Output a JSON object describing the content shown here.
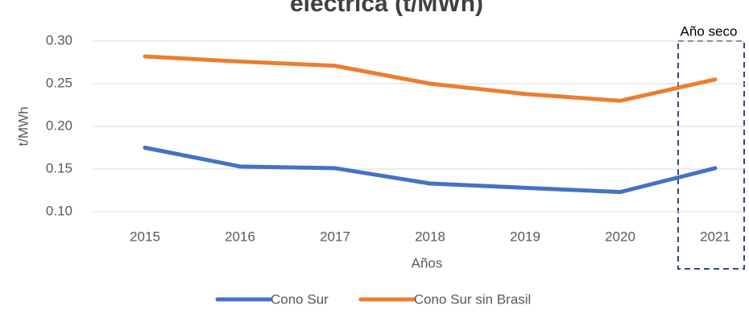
{
  "chart_data": {
    "type": "line",
    "title": "eléctrica (t/MWh)",
    "annotation": "Año seco",
    "x_label": "Años",
    "y_label": "t/MWh",
    "categories": [
      "2015",
      "2016",
      "2017",
      "2018",
      "2019",
      "2020",
      "2021"
    ],
    "series": [
      {
        "name": "Cono Sur",
        "color": "#4472c4",
        "values": [
          0.175,
          0.153,
          0.151,
          0.133,
          0.128,
          0.123,
          0.151
        ]
      },
      {
        "name": "Cono Sur sin Brasil",
        "color": "#ed7d31",
        "values": [
          0.282,
          0.276,
          0.271,
          0.25,
          0.238,
          0.23,
          0.255
        ]
      }
    ],
    "ylim": [
      0.1,
      0.3
    ],
    "yticks": [
      {
        "value": 0.1,
        "label": "0.10"
      },
      0.15,
      {
        "value": 0.2,
        "label": "0.20"
      },
      0.25,
      {
        "value": 0.3,
        "label": "0.30"
      }
    ],
    "grid": true,
    "legend": "bottom"
  }
}
